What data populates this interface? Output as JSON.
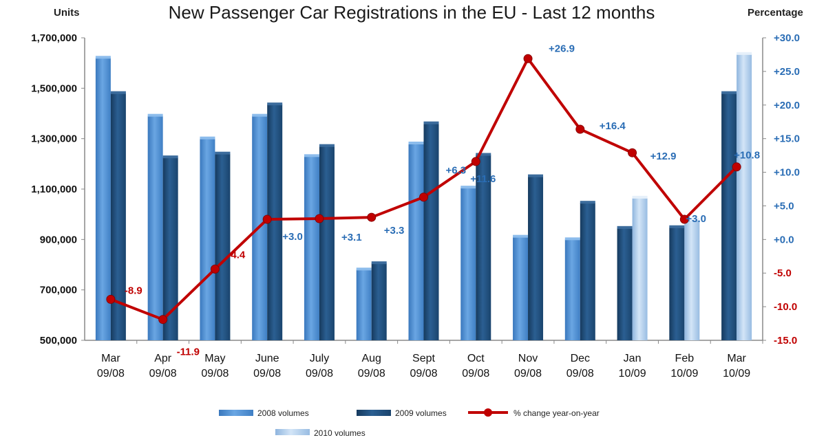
{
  "chart_data": {
    "type": "bar",
    "title": "New Passenger Car Registrations in the EU - Last 12 months",
    "ylabel": "Units",
    "y2label": "Percentage",
    "ylim": [
      500000,
      1700000
    ],
    "yticks": [
      "1,700,000",
      "1,500,000",
      "1,300,000",
      "1,100,000",
      "900,000",
      "700,000",
      "500,000"
    ],
    "y2lim": [
      -15.0,
      30.0
    ],
    "y2ticks": [
      "+30.0",
      "+25.0",
      "+20.0",
      "+15.0",
      "+10.0",
      "+5.0",
      "+0.0",
      "-5.0",
      "-10.0",
      "-15.0"
    ],
    "categories": [
      [
        "Mar",
        "09/08"
      ],
      [
        "Apr",
        "09/08"
      ],
      [
        "May",
        "09/08"
      ],
      [
        "June",
        "09/08"
      ],
      [
        "July",
        "09/08"
      ],
      [
        "Aug",
        "09/08"
      ],
      [
        "Sept",
        "09/08"
      ],
      [
        "Oct",
        "09/08"
      ],
      [
        "Nov",
        "09/08"
      ],
      [
        "Dec",
        "09/08"
      ],
      [
        "Jan",
        "10/09"
      ],
      [
        "Feb",
        "10/09"
      ],
      [
        "Mar",
        "10/09"
      ]
    ],
    "series": [
      {
        "name": "2008 volumes",
        "color": "#4f8fd1",
        "values": [
          1620000,
          1390000,
          1300000,
          1390000,
          1230000,
          780000,
          1280000,
          1105000,
          910000,
          900000,
          null,
          null,
          null
        ]
      },
      {
        "name": "2009 volumes",
        "color": "#1f4e79",
        "values": [
          1480000,
          1225000,
          1240000,
          1435000,
          1270000,
          805000,
          1360000,
          1235000,
          1150000,
          1045000,
          945000,
          948000,
          1480000
        ]
      },
      {
        "name": "2010 volumes",
        "color": "#a9c8ea",
        "values": [
          null,
          null,
          null,
          null,
          null,
          null,
          null,
          null,
          null,
          null,
          1065000,
          978000,
          1635000
        ]
      }
    ],
    "line": {
      "name": "% change year-on-year",
      "color": "#c00000",
      "values": [
        -8.9,
        -11.9,
        -4.4,
        3.0,
        3.1,
        3.3,
        6.3,
        11.6,
        26.9,
        16.4,
        12.9,
        3.0,
        10.8
      ],
      "labels": [
        "-8.9",
        "-11.9",
        "-4.4",
        "+3.0",
        "+3.1",
        "+3.3",
        "+6.3",
        "+11.6",
        "+26.9",
        "+16.4",
        "+12.9",
        "+3.0",
        "+10.8"
      ]
    },
    "legend_position": "bottom",
    "grid": false
  }
}
